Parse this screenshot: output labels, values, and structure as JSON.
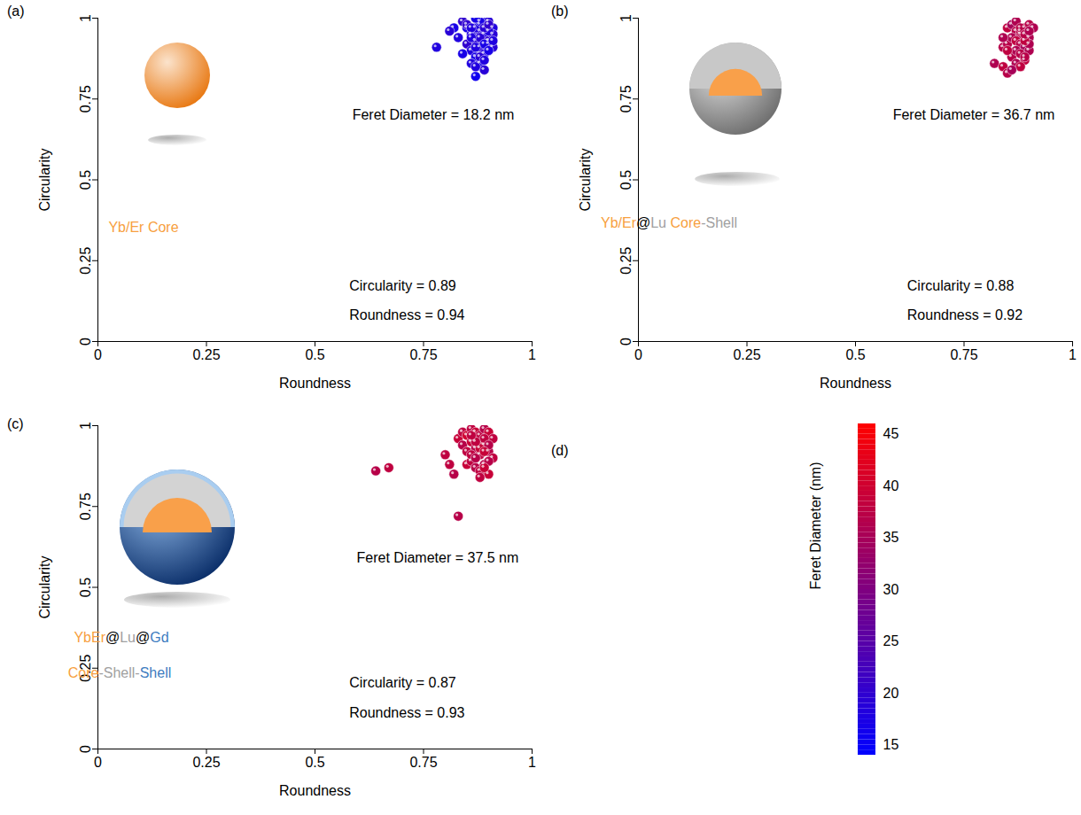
{
  "chart_data": [
    {
      "type": "scatter",
      "panel": "(a)",
      "xlabel": "Roundness",
      "ylabel": "Circularity",
      "xlim": [
        0,
        1
      ],
      "ylim": [
        0,
        1
      ],
      "xticks": [
        0,
        0.25,
        0.5,
        0.75,
        1
      ],
      "yticks": [
        0,
        0.25,
        0.5,
        0.75,
        1
      ],
      "annotations": [
        "Feret Diameter = 18.2 nm",
        "Circularity = 0.89",
        "Roundness = 0.94"
      ],
      "sample_label": [
        [
          {
            "text": "Yb/Er Core",
            "color": "#f7a040"
          }
        ]
      ],
      "x": [
        0.78,
        0.82,
        0.81,
        0.83,
        0.84,
        0.85,
        0.86,
        0.87,
        0.88,
        0.89,
        0.9,
        0.91,
        0.85,
        0.86,
        0.87,
        0.88,
        0.89,
        0.9,
        0.91,
        0.84,
        0.86,
        0.87,
        0.88,
        0.89,
        0.9,
        0.85,
        0.87,
        0.88,
        0.89,
        0.9,
        0.91,
        0.86,
        0.88,
        0.89,
        0.9,
        0.87,
        0.88,
        0.89,
        0.86,
        0.87,
        0.91,
        0.88,
        0.89,
        0.9,
        0.87
      ],
      "y": [
        0.91,
        0.97,
        0.96,
        0.94,
        0.99,
        0.97,
        0.95,
        0.93,
        0.98,
        1.0,
        0.99,
        0.97,
        0.92,
        0.9,
        0.88,
        0.96,
        0.95,
        0.93,
        0.95,
        0.89,
        0.86,
        0.82,
        0.91,
        0.89,
        0.92,
        0.98,
        0.97,
        0.94,
        0.92,
        0.96,
        0.91,
        0.97,
        0.99,
        0.97,
        0.98,
        0.91,
        0.86,
        0.84,
        0.94,
        1.0,
        0.93,
        0.88,
        0.87,
        0.9,
        0.85
      ],
      "feret_diameter": [
        18,
        17,
        19,
        18,
        20,
        17,
        18,
        19,
        18,
        17,
        19,
        18,
        20,
        18,
        17,
        19,
        18,
        20,
        19,
        17,
        18,
        16,
        19,
        18,
        17,
        20,
        18,
        19,
        17,
        18,
        19,
        18,
        17,
        19,
        20,
        18,
        17,
        19,
        18,
        17,
        18,
        19,
        18,
        17,
        18
      ]
    },
    {
      "type": "scatter",
      "panel": "(b)",
      "xlabel": "Roundness",
      "ylabel": "Circularity",
      "xlim": [
        0,
        1
      ],
      "ylim": [
        0,
        1
      ],
      "xticks": [
        0,
        0.25,
        0.5,
        0.75,
        1
      ],
      "yticks": [
        0,
        0.25,
        0.5,
        0.75,
        1
      ],
      "annotations": [
        "Feret Diameter = 36.7 nm",
        "Circularity = 0.88",
        "Roundness = 0.92"
      ],
      "sample_label": [
        [
          {
            "text": "Yb/Er",
            "color": "#f7a040"
          },
          {
            "text": "@",
            "color": "#000000"
          },
          {
            "text": "Lu",
            "color": "#a0a0a0"
          },
          {
            "text": " Core",
            "color": "#f7a040"
          },
          {
            "text": "-Shell",
            "color": "#a0a0a0"
          }
        ]
      ],
      "x": [
        0.82,
        0.84,
        0.85,
        0.86,
        0.87,
        0.88,
        0.89,
        0.9,
        0.91,
        0.85,
        0.86,
        0.87,
        0.88,
        0.89,
        0.9,
        0.84,
        0.86,
        0.87,
        0.88,
        0.89,
        0.9,
        0.85,
        0.87,
        0.88,
        0.89,
        0.9,
        0.86,
        0.88,
        0.89,
        0.87,
        0.88,
        0.85,
        0.84,
        0.89,
        0.9
      ],
      "y": [
        0.86,
        0.91,
        0.97,
        0.98,
        0.96,
        0.95,
        0.97,
        0.98,
        0.97,
        0.92,
        0.94,
        0.93,
        0.92,
        0.91,
        0.94,
        0.85,
        0.88,
        0.9,
        0.89,
        0.87,
        0.9,
        0.83,
        0.86,
        0.85,
        0.88,
        0.92,
        0.84,
        0.96,
        0.93,
        0.99,
        0.97,
        0.9,
        0.94,
        0.95,
        0.96
      ],
      "feret_diameter": [
        36,
        37,
        38,
        35,
        37,
        36,
        38,
        37,
        36,
        37,
        36,
        38,
        37,
        35,
        36,
        38,
        37,
        36,
        37,
        38,
        36,
        37,
        36,
        38,
        37,
        36,
        35,
        37,
        38,
        36,
        37,
        38,
        36,
        37,
        36
      ]
    },
    {
      "type": "scatter",
      "panel": "(c)",
      "xlabel": "Roundness",
      "ylabel": "Circularity",
      "xlim": [
        0,
        1
      ],
      "ylim": [
        0,
        1
      ],
      "xticks": [
        0,
        0.25,
        0.5,
        0.75,
        1
      ],
      "yticks": [
        0,
        0.25,
        0.5,
        0.75,
        1
      ],
      "annotations": [
        "Feret Diameter = 37.5 nm",
        "Circularity = 0.87",
        "Roundness = 0.93"
      ],
      "sample_label": [
        [
          {
            "text": "YbEr",
            "color": "#f7a040"
          },
          {
            "text": "@",
            "color": "#000000"
          },
          {
            "text": "Lu",
            "color": "#a0a0a0"
          },
          {
            "text": "@",
            "color": "#000000"
          },
          {
            "text": "Gd",
            "color": "#3d7cc0"
          }
        ],
        [
          {
            "text": "Core",
            "color": "#f7a040"
          },
          {
            "text": "-Shell-",
            "color": "#a0a0a0"
          },
          {
            "text": "Shell",
            "color": "#3d7cc0"
          }
        ]
      ],
      "x": [
        0.64,
        0.67,
        0.83,
        0.8,
        0.82,
        0.83,
        0.84,
        0.85,
        0.86,
        0.87,
        0.88,
        0.89,
        0.9,
        0.91,
        0.84,
        0.85,
        0.86,
        0.87,
        0.88,
        0.89,
        0.9,
        0.91,
        0.85,
        0.86,
        0.87,
        0.88,
        0.89,
        0.9,
        0.86,
        0.87,
        0.88,
        0.89,
        0.9,
        0.88,
        0.89,
        0.87,
        0.9,
        0.86,
        0.89,
        0.81
      ],
      "y": [
        0.86,
        0.87,
        0.72,
        0.91,
        0.85,
        0.96,
        0.98,
        0.97,
        0.99,
        0.98,
        0.97,
        0.99,
        0.98,
        0.96,
        0.94,
        0.92,
        0.95,
        0.93,
        0.91,
        0.94,
        0.92,
        0.9,
        0.88,
        0.89,
        0.87,
        0.86,
        0.88,
        0.85,
        0.91,
        0.9,
        0.93,
        0.96,
        0.89,
        0.84,
        0.87,
        0.95,
        0.94,
        0.97,
        0.92,
        0.88
      ],
      "feret_diameter": [
        37,
        38,
        37,
        38,
        37,
        39,
        38,
        40,
        38,
        39,
        38,
        37,
        39,
        38,
        37,
        38,
        39,
        37,
        38,
        39,
        37,
        38,
        39,
        38,
        37,
        38,
        37,
        39,
        38,
        37,
        39,
        38,
        37,
        38,
        39,
        38,
        37,
        38,
        39,
        38
      ]
    },
    {
      "type": "colorbar",
      "panel": "(d)",
      "label": "Feret Diameter (nm)",
      "range": [
        14,
        46
      ],
      "ticks": [
        15,
        20,
        25,
        30,
        35,
        40,
        45
      ],
      "colors": [
        "#0000ff",
        "#ff0000"
      ]
    }
  ]
}
